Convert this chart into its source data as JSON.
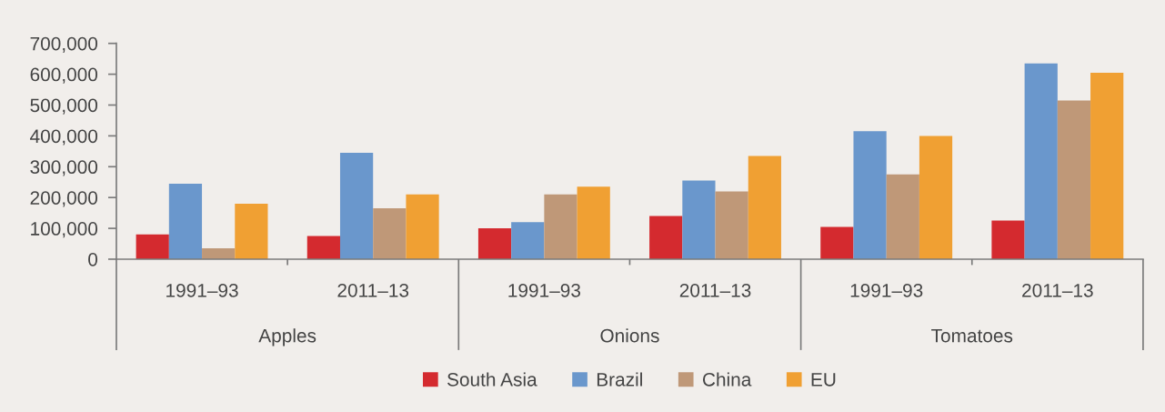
{
  "chart_data": {
    "type": "bar",
    "categories": [
      "1991–93",
      "2011–13",
      "1991–93",
      "2011–13",
      "1991–93",
      "2011–13"
    ],
    "series": [
      {
        "name": "South Asia",
        "color": "#d42a2f",
        "values": [
          80000,
          75000,
          100000,
          140000,
          105000,
          125000
        ]
      },
      {
        "name": "Brazil",
        "color": "#6a97cc",
        "values": [
          245000,
          345000,
          120000,
          255000,
          415000,
          635000
        ]
      },
      {
        "name": "China",
        "color": "#bf9878",
        "values": [
          35000,
          165000,
          210000,
          220000,
          275000,
          515000
        ]
      },
      {
        "name": "EU",
        "color": "#f0a033",
        "values": [
          180000,
          210000,
          235000,
          335000,
          400000,
          605000
        ]
      }
    ],
    "ylim": [
      0,
      700000
    ],
    "yticks": [
      0,
      {
        "value": 100000,
        "label": "100,000"
      },
      {
        "value": 200000,
        "label": "200,000"
      },
      {
        "value": 300000,
        "label": "300,000"
      },
      {
        "value": 400000,
        "label": "400,000"
      },
      {
        "value": 500000,
        "label": "500,000"
      },
      {
        "value": 600000,
        "label": "600,000"
      },
      {
        "value": 700000,
        "label": "700,000"
      }
    ],
    "annotations": [
      "Apples",
      "Onions",
      "Tomatoes"
    ],
    "legend": "bottom"
  }
}
